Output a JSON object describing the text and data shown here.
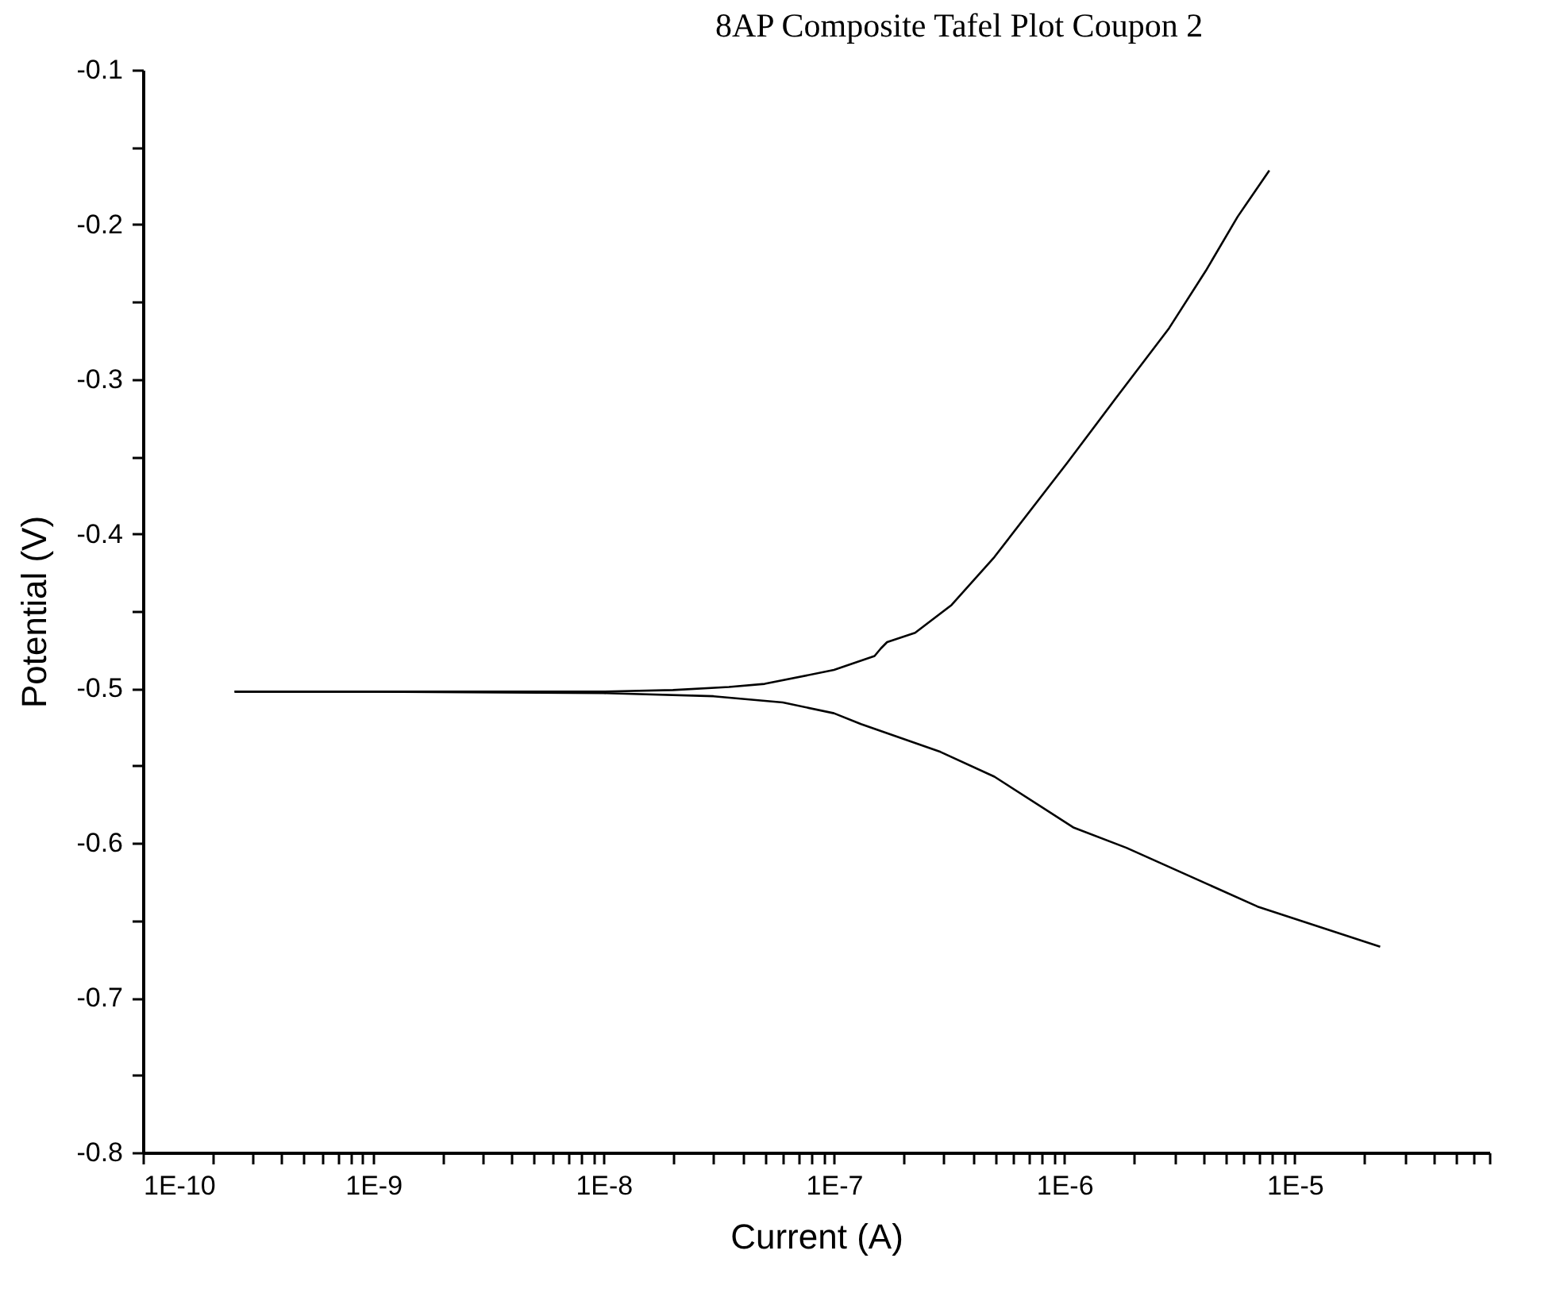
{
  "chart_data": {
    "type": "line",
    "title": "8AP Composite Tafel Plot Coupon 2",
    "xlabel": "Current (A)",
    "ylabel": "Potential (V)",
    "log": "x",
    "grid": false,
    "legend": false,
    "marker": "none",
    "line_style": "solid",
    "xlim": [
      1e-10,
      7e-05
    ],
    "xticks": [
      {
        "value": 1e-10,
        "label": "1E-10"
      },
      {
        "value": 2e-10,
        "label": null
      },
      {
        "value": 3e-10,
        "label": null
      },
      {
        "value": 4e-10,
        "label": null
      },
      {
        "value": 5e-10,
        "label": null
      },
      {
        "value": 6e-10,
        "label": null
      },
      {
        "value": 7e-10,
        "label": null
      },
      {
        "value": 8e-10,
        "label": null
      },
      {
        "value": 9e-10,
        "label": null
      },
      {
        "value": 1e-09,
        "label": "1E-9"
      },
      {
        "value": 2e-09,
        "label": null
      },
      {
        "value": 3e-09,
        "label": null
      },
      {
        "value": 4e-09,
        "label": null
      },
      {
        "value": 5e-09,
        "label": null
      },
      {
        "value": 6e-09,
        "label": null
      },
      {
        "value": 7e-09,
        "label": null
      },
      {
        "value": 8e-09,
        "label": null
      },
      {
        "value": 9e-09,
        "label": null
      },
      {
        "value": 1e-08,
        "label": "1E-8"
      },
      {
        "value": 2e-08,
        "label": null
      },
      {
        "value": 3e-08,
        "label": null
      },
      {
        "value": 4e-08,
        "label": null
      },
      {
        "value": 5e-08,
        "label": null
      },
      {
        "value": 6e-08,
        "label": null
      },
      {
        "value": 7e-08,
        "label": null
      },
      {
        "value": 8e-08,
        "label": null
      },
      {
        "value": 9e-08,
        "label": null
      },
      {
        "value": 1e-07,
        "label": "1E-7"
      },
      {
        "value": 2e-07,
        "label": null
      },
      {
        "value": 3e-07,
        "label": null
      },
      {
        "value": 4e-07,
        "label": null
      },
      {
        "value": 5e-07,
        "label": null
      },
      {
        "value": 6e-07,
        "label": null
      },
      {
        "value": 7e-07,
        "label": null
      },
      {
        "value": 8e-07,
        "label": null
      },
      {
        "value": 9e-07,
        "label": null
      },
      {
        "value": 1e-06,
        "label": "1E-6"
      },
      {
        "value": 2e-06,
        "label": null
      },
      {
        "value": 3e-06,
        "label": null
      },
      {
        "value": 4e-06,
        "label": null
      },
      {
        "value": 5e-06,
        "label": null
      },
      {
        "value": 6e-06,
        "label": null
      },
      {
        "value": 7e-06,
        "label": null
      },
      {
        "value": 8e-06,
        "label": null
      },
      {
        "value": 9e-06,
        "label": null
      },
      {
        "value": 1e-05,
        "label": "1E-5"
      },
      {
        "value": 2e-05,
        "label": null
      },
      {
        "value": 3e-05,
        "label": null
      },
      {
        "value": 4e-05,
        "label": null
      },
      {
        "value": 5e-05,
        "label": null
      },
      {
        "value": 6e-05,
        "label": null
      },
      {
        "value": 7e-05,
        "label": null
      }
    ],
    "ylim": [
      -0.8,
      -0.1
    ],
    "yticks": [
      -0.8,
      {
        "value": -0.75,
        "label": null
      },
      -0.7,
      {
        "value": -0.65,
        "label": null
      },
      -0.6,
      {
        "value": -0.55,
        "label": null
      },
      -0.5,
      {
        "value": -0.45,
        "label": null
      },
      -0.4,
      {
        "value": -0.35,
        "label": null
      },
      -0.3,
      {
        "value": -0.25,
        "label": null
      },
      -0.2,
      {
        "value": -0.15,
        "label": null
      },
      -0.1
    ],
    "series": [
      {
        "color": "#000000",
        "x": [
          2.5e-10,
          1e-09,
          1e-08,
          2e-08,
          3.5e-08,
          5e-08,
          1e-07,
          1.5e-07,
          1.6e-07,
          1.7e-07,
          2.25e-07,
          3.24e-07,
          4.97e-07,
          1.03e-06,
          1.66e-06,
          2.85e-06,
          4.11e-06,
          5.65e-06,
          7.76e-06
        ],
        "values": [
          -0.502,
          -0.502,
          -0.502,
          -0.501,
          -0.499,
          -0.497,
          -0.488,
          -0.479,
          -0.474,
          -0.47,
          -0.464,
          -0.446,
          -0.415,
          -0.354,
          -0.313,
          -0.267,
          -0.23,
          -0.195,
          -0.165
        ]
      },
      {
        "color": "#000000",
        "x": [
          2.5e-10,
          1e-09,
          1e-08,
          3e-08,
          6e-08,
          1e-07,
          1.31e-07,
          2.9e-07,
          4.97e-07,
          1.1e-06,
          1.86e-06,
          6.9e-06,
          2.35e-05
        ],
        "values": [
          -0.502,
          -0.502,
          -0.503,
          -0.505,
          -0.509,
          -0.516,
          -0.523,
          -0.541,
          -0.557,
          -0.59,
          -0.603,
          -0.641,
          -0.667
        ]
      }
    ]
  }
}
